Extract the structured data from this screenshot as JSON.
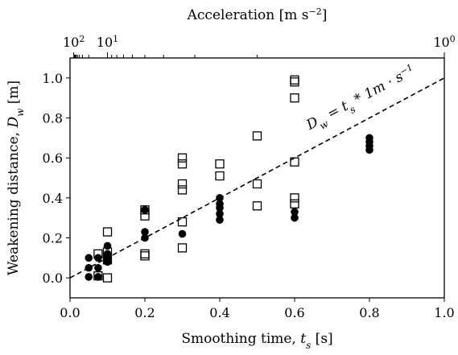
{
  "chart_data": {
    "type": "scatter",
    "xlabel_prefix": "Smoothing time, ",
    "xlabel_var": "t",
    "xlabel_sub": "s",
    "xlabel_unit": " [s]",
    "ylabel_prefix": "Weakening distance, ",
    "ylabel_var": "D",
    "ylabel_sub": "w",
    "ylabel_unit": " [m]",
    "top_axis": {
      "label_prefix": "Acceleration [m s",
      "label_exp": "−2",
      "label_suffix": "]",
      "scale": "reciprocal",
      "ticks": [
        {
          "value": 100,
          "label_base": "10",
          "label_exp": "2"
        },
        {
          "value": 10,
          "label_base": "10",
          "label_exp": "1"
        },
        {
          "value": 1,
          "label_base": "10",
          "label_exp": "0"
        }
      ],
      "minor_ticks": [
        90,
        80,
        70,
        60,
        50,
        40,
        30,
        20,
        9,
        8,
        7,
        6,
        5,
        4,
        3,
        2
      ]
    },
    "xlim": [
      0.0,
      1.0
    ],
    "ylim": [
      -0.1,
      1.1
    ],
    "xticks": [
      "0.0",
      "0.2",
      "0.4",
      "0.6",
      "0.8",
      "1.0"
    ],
    "yticks": [
      "0.0",
      "0.2",
      "0.4",
      "0.6",
      "0.8",
      "1.0"
    ],
    "grid": false,
    "legend": "none",
    "series": [
      {
        "marker": "filled-circle",
        "color": "#000000",
        "points": [
          {
            "x": 0.05,
            "y": 0.1
          },
          {
            "x": 0.05,
            "y": 0.05
          },
          {
            "x": 0.05,
            "y": 0.005
          },
          {
            "x": 0.075,
            "y": 0.1
          },
          {
            "x": 0.075,
            "y": 0.05
          },
          {
            "x": 0.075,
            "y": 0.005
          },
          {
            "x": 0.1,
            "y": 0.16
          },
          {
            "x": 0.1,
            "y": 0.12
          },
          {
            "x": 0.1,
            "y": 0.1
          },
          {
            "x": 0.1,
            "y": 0.08
          },
          {
            "x": 0.2,
            "y": 0.34
          },
          {
            "x": 0.2,
            "y": 0.23
          },
          {
            "x": 0.2,
            "y": 0.2
          },
          {
            "x": 0.3,
            "y": 0.22
          },
          {
            "x": 0.4,
            "y": 0.4
          },
          {
            "x": 0.4,
            "y": 0.37
          },
          {
            "x": 0.4,
            "y": 0.35
          },
          {
            "x": 0.4,
            "y": 0.32
          },
          {
            "x": 0.4,
            "y": 0.29
          },
          {
            "x": 0.6,
            "y": 0.33
          },
          {
            "x": 0.6,
            "y": 0.3
          },
          {
            "x": 0.8,
            "y": 0.7
          },
          {
            "x": 0.8,
            "y": 0.68
          },
          {
            "x": 0.8,
            "y": 0.66
          },
          {
            "x": 0.8,
            "y": 0.64
          }
        ]
      },
      {
        "marker": "open-square",
        "color": "#000000",
        "points": [
          {
            "x": 0.075,
            "y": 0.12
          },
          {
            "x": 0.075,
            "y": 0.01
          },
          {
            "x": 0.1,
            "y": 0.23
          },
          {
            "x": 0.1,
            "y": 0.13
          },
          {
            "x": 0.1,
            "y": 0.09
          },
          {
            "x": 0.1,
            "y": 0.0
          },
          {
            "x": 0.2,
            "y": 0.34
          },
          {
            "x": 0.2,
            "y": 0.31
          },
          {
            "x": 0.2,
            "y": 0.12
          },
          {
            "x": 0.2,
            "y": 0.11
          },
          {
            "x": 0.3,
            "y": 0.6
          },
          {
            "x": 0.3,
            "y": 0.57
          },
          {
            "x": 0.3,
            "y": 0.47
          },
          {
            "x": 0.3,
            "y": 0.44
          },
          {
            "x": 0.3,
            "y": 0.28
          },
          {
            "x": 0.3,
            "y": 0.15
          },
          {
            "x": 0.4,
            "y": 0.57
          },
          {
            "x": 0.4,
            "y": 0.51
          },
          {
            "x": 0.5,
            "y": 0.71
          },
          {
            "x": 0.5,
            "y": 0.47
          },
          {
            "x": 0.5,
            "y": 0.36
          },
          {
            "x": 0.6,
            "y": 0.99
          },
          {
            "x": 0.6,
            "y": 0.98
          },
          {
            "x": 0.6,
            "y": 0.9
          },
          {
            "x": 0.6,
            "y": 0.58
          },
          {
            "x": 0.6,
            "y": 0.4
          },
          {
            "x": 0.6,
            "y": 0.37
          }
        ]
      }
    ],
    "reference_line": {
      "style": "dashed",
      "x": [
        0.0,
        1.0
      ],
      "y": [
        0.0,
        1.0
      ],
      "label_lhs_var": "D",
      "label_lhs_sub": "w",
      "label_eq": " = ",
      "label_rhs_var": "t",
      "label_rhs_sub": "s",
      "label_rhs_rest": " * 1m · s",
      "label_rhs_exp": "−1"
    }
  }
}
